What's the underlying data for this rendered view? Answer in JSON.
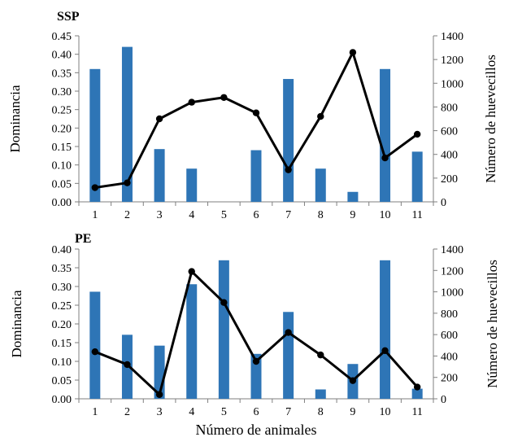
{
  "chart_data": [
    {
      "type": "bar+line",
      "title": "SSP",
      "xlabel": "",
      "ylabel": "Dominancia",
      "y2label": "Número de huevecillos",
      "categories": [
        "1",
        "2",
        "3",
        "4",
        "5",
        "6",
        "7",
        "8",
        "9",
        "10",
        "11"
      ],
      "ylim": [
        0,
        0.45
      ],
      "yticks": [
        "0.00",
        "0.05",
        "0.10",
        "0.15",
        "0.20",
        "0.25",
        "0.30",
        "0.35",
        "0.40",
        "0.45"
      ],
      "y2lim": [
        0,
        1400
      ],
      "y2ticks": [
        "0",
        "200",
        "400",
        "600",
        "800",
        "1000",
        "1200",
        "1400"
      ],
      "series": [
        {
          "name": "Dominancia",
          "kind": "bar",
          "axis": "left",
          "color": "#2e75b6",
          "values": [
            0.36,
            0.42,
            0.143,
            0.09,
            0.0,
            0.14,
            0.333,
            0.09,
            0.027,
            0.36,
            0.136
          ]
        },
        {
          "name": "Número de huevecillos",
          "kind": "line",
          "axis": "right",
          "color": "#000000",
          "values": [
            120,
            160,
            700,
            840,
            880,
            750,
            270,
            720,
            1260,
            370,
            570
          ]
        }
      ]
    },
    {
      "type": "bar+line",
      "title": "PE",
      "xlabel": "Número de animales",
      "ylabel": "Dominancia",
      "y2label": "Número de huevecillos",
      "categories": [
        "1",
        "2",
        "3",
        "4",
        "5",
        "6",
        "7",
        "8",
        "9",
        "10",
        "11"
      ],
      "ylim": [
        0,
        0.4
      ],
      "yticks": [
        "0.00",
        "0.05",
        "0.10",
        "0.15",
        "0.20",
        "0.25",
        "0.30",
        "0.35",
        "0.40"
      ],
      "y2lim": [
        0,
        1400
      ],
      "y2ticks": [
        "0",
        "200",
        "400",
        "600",
        "800",
        "1000",
        "1200",
        "1400"
      ],
      "series": [
        {
          "name": "Dominancia",
          "kind": "bar",
          "axis": "left",
          "color": "#2e75b6",
          "values": [
            0.286,
            0.171,
            0.142,
            0.306,
            0.37,
            0.12,
            0.232,
            0.025,
            0.093,
            0.37,
            0.027
          ]
        },
        {
          "name": "Número de huevecillos",
          "kind": "line",
          "axis": "right",
          "color": "#000000",
          "values": [
            440,
            320,
            40,
            1190,
            900,
            350,
            620,
            410,
            170,
            450,
            110
          ]
        }
      ]
    }
  ]
}
